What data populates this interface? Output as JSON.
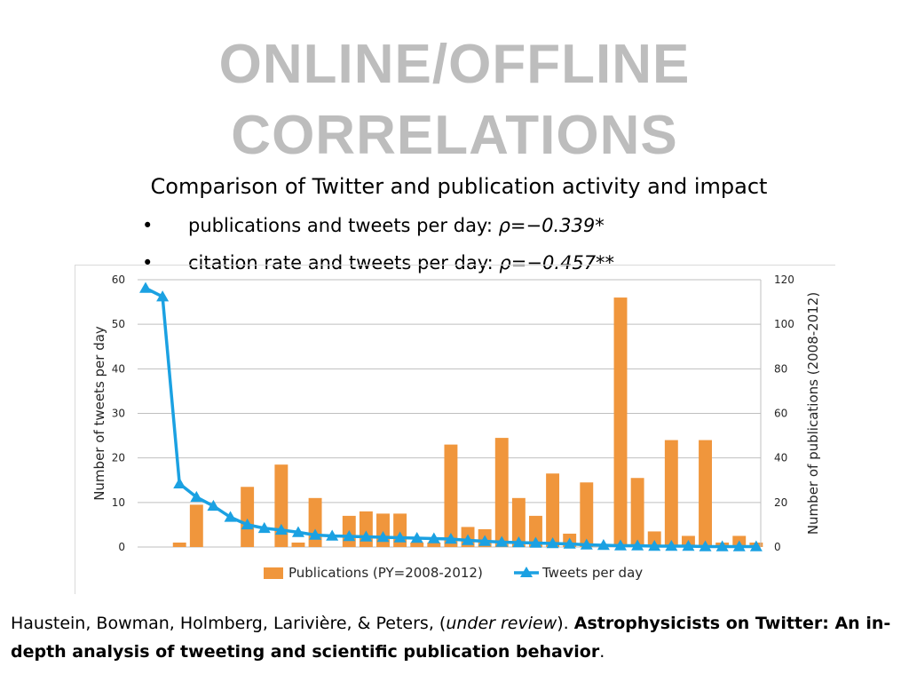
{
  "slide": {
    "title_line1": "ONLINE/OFFLINE",
    "title_line2": "CORRELATIONS",
    "subtitle": "Comparison of Twitter and publication activity and impact",
    "bullets": [
      {
        "text": "publications and tweets per day: ",
        "rho": "ρ=−0.339*"
      },
      {
        "text": "citation rate and tweets per day: ",
        "rho": "ρ=−0.457**"
      }
    ],
    "citation": {
      "authors": "Haustein, Bowman, Holmberg, Larivière, & Peters, (",
      "status": "under review",
      "after_status": "). ",
      "title": "Astrophysicists on Twitter: An in-depth analysis of tweeting and scientific publication behavior",
      "end": "."
    }
  },
  "chart_data": {
    "type": "bar+line",
    "xlabel": "",
    "ylabel_left": "Number of tweets per day",
    "ylabel_right": "Number of publications (2008-2012)",
    "ylim_left": [
      0,
      60
    ],
    "ylim_right": [
      0,
      120
    ],
    "yticks_left": [
      0,
      10,
      20,
      30,
      40,
      50,
      60
    ],
    "yticks_right": [
      0,
      20,
      40,
      60,
      80,
      100,
      120
    ],
    "grid": true,
    "legend_position": "bottom",
    "n_categories": 37,
    "series": [
      {
        "name": "Publications (PY=2008-2012)",
        "kind": "bar",
        "axis": "right",
        "color": "#f0963c",
        "values": [
          0,
          0,
          2,
          19,
          0,
          0,
          27,
          0,
          37,
          2,
          22,
          0,
          14,
          16,
          15,
          15,
          2,
          2,
          46,
          9,
          8,
          49,
          22,
          14,
          33,
          6,
          29,
          0,
          112,
          31,
          7,
          48,
          5,
          48,
          2,
          5,
          2
        ]
      },
      {
        "name": "Tweets per day",
        "kind": "line",
        "axis": "left",
        "color": "#1ba1e2",
        "values": [
          58.1,
          56.2,
          14.2,
          11.2,
          9.2,
          6.7,
          5.0,
          4.2,
          3.8,
          3.3,
          2.7,
          2.5,
          2.4,
          2.3,
          2.2,
          2.1,
          2.0,
          1.9,
          1.8,
          1.5,
          1.3,
          1.1,
          1.0,
          0.9,
          0.8,
          0.7,
          0.5,
          0.4,
          0.3,
          0.3,
          0.2,
          0.2,
          0.2,
          0.1,
          0.1,
          0.1,
          0.1
        ]
      }
    ]
  }
}
